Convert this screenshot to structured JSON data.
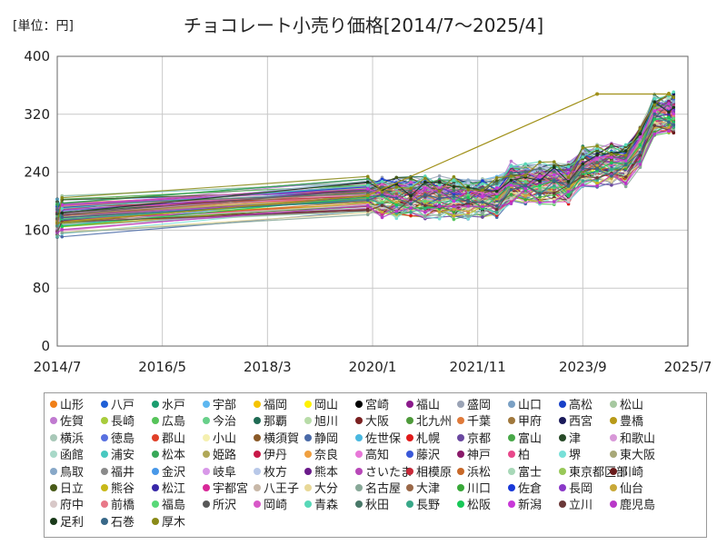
{
  "chart_data": {
    "type": "line",
    "title": "チョコレート小売り価格[2014/7～2025/4]",
    "unit_label": "[単位：円]",
    "xlabel": "",
    "ylabel": "",
    "ylim": [
      0,
      400
    ],
    "yticks": [
      "0",
      "80",
      "160",
      "240",
      "320",
      "400"
    ],
    "xticks": [
      "2014/7",
      "2016/5",
      "2018/3",
      "2020/1",
      "2021/11",
      "2023/9",
      "2025/7"
    ],
    "xlim_months": [
      "2014-07",
      "2025-07"
    ],
    "grid": true,
    "legend_position": "bottom",
    "timeline": [
      "2014-07",
      "2014-08",
      "2019-12",
      "2020-03",
      "2020-06",
      "2020-09",
      "2020-12",
      "2021-03",
      "2021-06",
      "2021-09",
      "2021-12",
      "2022-03",
      "2022-06",
      "2022-09",
      "2022-12",
      "2023-03",
      "2023-06",
      "2023-09",
      "2023-12",
      "2024-03",
      "2024-06",
      "2024-09",
      "2024-12",
      "2025-03",
      "2025-04"
    ],
    "series": [
      {
        "name": "山形",
        "color": "#f07f17"
      },
      {
        "name": "八戸",
        "color": "#1f5fd6"
      },
      {
        "name": "水戸",
        "color": "#1b9d6f"
      },
      {
        "name": "宇部",
        "color": "#5db7f0"
      },
      {
        "name": "福岡",
        "color": "#f5c400"
      },
      {
        "name": "岡山",
        "color": "#fff200"
      },
      {
        "name": "宮崎",
        "color": "#000000"
      },
      {
        "name": "福山",
        "color": "#8b1a8b"
      },
      {
        "name": "盛岡",
        "color": "#9aa3b5"
      },
      {
        "name": "山口",
        "color": "#7aa0c4"
      },
      {
        "name": "高松",
        "color": "#1740c8"
      },
      {
        "name": "松山",
        "color": "#a6c8a0"
      },
      {
        "name": "佐賀",
        "color": "#c07ad0"
      },
      {
        "name": "長崎",
        "color": "#a8cc3c"
      },
      {
        "name": "広島",
        "color": "#56c45a"
      },
      {
        "name": "今治",
        "color": "#68d08a"
      },
      {
        "name": "那覇",
        "color": "#1f6b54"
      },
      {
        "name": "旭川",
        "color": "#b8dca8"
      },
      {
        "name": "大阪",
        "color": "#7a2020"
      },
      {
        "name": "北九州",
        "color": "#4e9a3a"
      },
      {
        "name": "千葉",
        "color": "#e07a3a"
      },
      {
        "name": "甲府",
        "color": "#a0783c"
      },
      {
        "name": "西宮",
        "color": "#1a1a5a"
      },
      {
        "name": "豊橋",
        "color": "#b89a18"
      },
      {
        "name": "横浜",
        "color": "#a8c8b8"
      },
      {
        "name": "徳島",
        "color": "#5870e0"
      },
      {
        "name": "郡山",
        "color": "#e04028"
      },
      {
        "name": "小山",
        "color": "#f5f0b0"
      },
      {
        "name": "横須賀",
        "color": "#8a5a28"
      },
      {
        "name": "静岡",
        "color": "#4a6aa8"
      },
      {
        "name": "佐世保",
        "color": "#4ab8e0"
      },
      {
        "name": "札幌",
        "color": "#e01a1a"
      },
      {
        "name": "京都",
        "color": "#6a48a0"
      },
      {
        "name": "富山",
        "color": "#48a848"
      },
      {
        "name": "津",
        "color": "#284a28"
      },
      {
        "name": "和歌山",
        "color": "#d898d8"
      },
      {
        "name": "函館",
        "color": "#a8d8c8"
      },
      {
        "name": "浦安",
        "color": "#48c8c0"
      },
      {
        "name": "松本",
        "color": "#38a858"
      },
      {
        "name": "姫路",
        "color": "#b0a858"
      },
      {
        "name": "伊丹",
        "color": "#c81848"
      },
      {
        "name": "奈良",
        "color": "#f0a040"
      },
      {
        "name": "高知",
        "color": "#e878d8"
      },
      {
        "name": "藤沢",
        "color": "#3a58d8"
      },
      {
        "name": "神戸",
        "color": "#8a1a6a"
      },
      {
        "name": "柏",
        "color": "#e8488a"
      },
      {
        "name": "堺",
        "color": "#78e0d8"
      },
      {
        "name": "東大阪",
        "color": "#a8a878"
      },
      {
        "name": "鳥取",
        "color": "#88a8c8"
      },
      {
        "name": "福井",
        "color": "#8a8a8a"
      },
      {
        "name": "金沢",
        "color": "#4898e8"
      },
      {
        "name": "岐阜",
        "color": "#d898e8"
      },
      {
        "name": "枚方",
        "color": "#b8c8e8"
      },
      {
        "name": "熊本",
        "color": "#6a1a8a"
      },
      {
        "name": "さいたま",
        "color": "#b848b8"
      },
      {
        "name": "相模原",
        "color": "#c82838"
      },
      {
        "name": "浜松",
        "color": "#c86828"
      },
      {
        "name": "富士",
        "color": "#a8d8b8"
      },
      {
        "name": "東京都区部",
        "color": "#98c858"
      },
      {
        "name": "川崎",
        "color": "#681a1a"
      },
      {
        "name": "日立",
        "color": "#485a18"
      },
      {
        "name": "熊谷",
        "color": "#c8b818"
      },
      {
        "name": "松江",
        "color": "#3828a8"
      },
      {
        "name": "宇都宮",
        "color": "#d82898"
      },
      {
        "name": "八王子",
        "color": "#c8b8a8"
      },
      {
        "name": "大分",
        "color": "#e8d898"
      },
      {
        "name": "名古屋",
        "color": "#88a898"
      },
      {
        "name": "大津",
        "color": "#9a6848"
      },
      {
        "name": "川口",
        "color": "#38a838"
      },
      {
        "name": "佐倉",
        "color": "#1838d8"
      },
      {
        "name": "長岡",
        "color": "#8a38c8"
      },
      {
        "name": "仙台",
        "color": "#c8a838"
      },
      {
        "name": "府中",
        "color": "#d8c8c8"
      },
      {
        "name": "前橋",
        "color": "#e87888"
      },
      {
        "name": "福島",
        "color": "#58d878"
      },
      {
        "name": "所沢",
        "color": "#585858"
      },
      {
        "name": "岡崎",
        "color": "#d858c8"
      },
      {
        "name": "青森",
        "color": "#58d8b8"
      },
      {
        "name": "秋田",
        "color": "#487868"
      },
      {
        "name": "長野",
        "color": "#38a888"
      },
      {
        "name": "松阪",
        "color": "#18c858"
      },
      {
        "name": "新潟",
        "color": "#c838d8"
      },
      {
        "name": "立川",
        "color": "#6a3838"
      },
      {
        "name": "鹿児島",
        "color": "#b838c8"
      },
      {
        "name": "足利",
        "color": "#1a3a1a"
      },
      {
        "name": "石巻",
        "color": "#386888"
      },
      {
        "name": "厚木",
        "color": "#8a8a18"
      }
    ],
    "highlight_series": {
      "name": "厚木",
      "points": [
        [
          "2014-07",
          170
        ],
        [
          "2019-12",
          208
        ],
        [
          "2023-12",
          348
        ],
        [
          "2025-03",
          348
        ]
      ]
    }
  }
}
